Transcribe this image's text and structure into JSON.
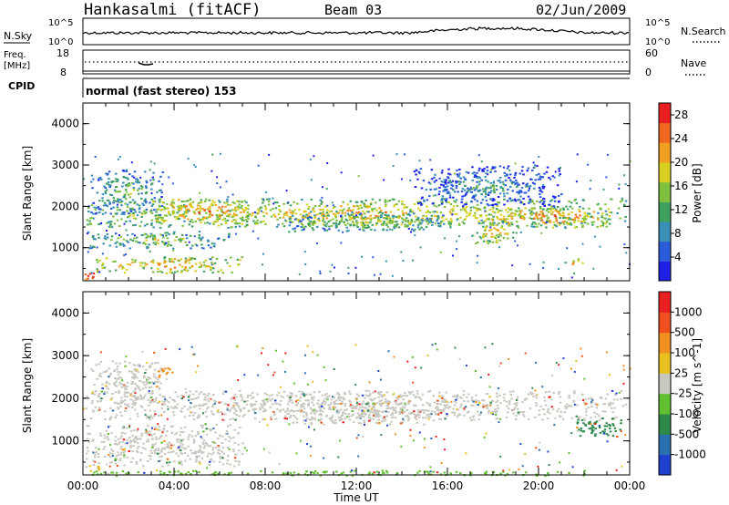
{
  "header": {
    "station": "Hankasalmi (fitACF)",
    "beam": "Beam 03",
    "date": "02/Jun/2009"
  },
  "noise_panel": {
    "left_label": "N.Sky",
    "right_label": "N.Search",
    "left_ticks": [
      "10^5",
      "10^0"
    ],
    "right_ticks": [
      "10^5",
      "10^0"
    ]
  },
  "freq_panel": {
    "left_label_line1": "Freq.",
    "left_label_line2": "[MHz]",
    "right_label": "Nave",
    "left_ticks": [
      "18",
      "8"
    ],
    "right_ticks": [
      "60",
      "0"
    ]
  },
  "cpid": {
    "label": "CPID",
    "mode": "normal (fast stereo) 153"
  },
  "chart_data": [
    {
      "type": "heatmap",
      "name": "power",
      "ylabel": "Slant Range [km]",
      "x_ticks": [
        "00:00",
        "04:00",
        "08:00",
        "12:00",
        "16:00",
        "20:00",
        "00:00"
      ],
      "y_ticks": [
        "1000",
        "2000",
        "3000",
        "4000"
      ],
      "ylim": [
        200,
        4500
      ],
      "xlim_hours": [
        0,
        24
      ],
      "colorbar": {
        "label": "Power [dB]",
        "ticks": [
          "4",
          "8",
          "12",
          "16",
          "20",
          "24",
          "28"
        ],
        "range": [
          0,
          30
        ],
        "colors": [
          "#1f1fe6",
          "#2a5bd8",
          "#3a8fb8",
          "#3fa060",
          "#80c040",
          "#d8d020",
          "#f0a020",
          "#f06820",
          "#e82020"
        ]
      },
      "bands": [
        {
          "t0": 0.1,
          "t1": 23.8,
          "r0": 1500,
          "r1": 2200,
          "level": 16
        },
        {
          "t0": 0.3,
          "t1": 3.5,
          "r0": 1800,
          "r1": 2900,
          "level": 10
        },
        {
          "t0": 3.0,
          "t1": 7.5,
          "r0": 1600,
          "r1": 2200,
          "level": 20
        },
        {
          "t0": 17.5,
          "t1": 23.2,
          "r0": 1500,
          "r1": 2000,
          "level": 20
        },
        {
          "t0": 0.1,
          "t1": 6.5,
          "r0": 1000,
          "r1": 1400,
          "level": 12
        },
        {
          "t0": 0.5,
          "t1": 7.0,
          "r0": 400,
          "r1": 800,
          "level": 18
        },
        {
          "t0": 9.0,
          "t1": 16.0,
          "r0": 1400,
          "r1": 1900,
          "level": 12
        },
        {
          "t0": 14.5,
          "t1": 21.0,
          "r0": 2000,
          "r1": 3000,
          "level": 6
        },
        {
          "t0": 0.0,
          "t1": 0.6,
          "r0": 250,
          "r1": 500,
          "level": 26
        },
        {
          "t0": 17.0,
          "t1": 19.0,
          "r0": 1100,
          "r1": 1700,
          "level": 16
        },
        {
          "t0": 21.0,
          "t1": 22.0,
          "r0": 550,
          "r1": 750,
          "level": 18
        }
      ]
    },
    {
      "type": "heatmap",
      "name": "velocity",
      "ylabel": "Slant Range [km]",
      "xlabel": "Time UT",
      "x_ticks": [
        "00:00",
        "04:00",
        "08:00",
        "12:00",
        "16:00",
        "20:00",
        "00:00"
      ],
      "y_ticks": [
        "1000",
        "2000",
        "3000",
        "4000"
      ],
      "ylim": [
        200,
        4500
      ],
      "xlim_hours": [
        0,
        24
      ],
      "colorbar": {
        "label": "Velocity [m s^-1]",
        "ticks": [
          "1000",
          "500",
          "100",
          "25",
          "-25",
          "-100",
          "-500",
          "-1000"
        ],
        "colors": [
          "#2040d0",
          "#2a6fb0",
          "#2e8a4a",
          "#60c030",
          "#c8c8c0",
          "#e8c020",
          "#f09020",
          "#f05020",
          "#e82020"
        ]
      },
      "bands": [
        {
          "t0": 0.1,
          "t1": 23.8,
          "r0": 1500,
          "r1": 2200,
          "color": "#c8c8c0"
        },
        {
          "t0": 0.3,
          "t1": 3.5,
          "r0": 1800,
          "r1": 2900,
          "color": "#c8c8c0"
        },
        {
          "t0": 0.1,
          "t1": 7.0,
          "r0": 400,
          "r1": 1400,
          "color": "#c8c8c0"
        },
        {
          "t0": 9.0,
          "t1": 16.0,
          "r0": 1400,
          "r1": 1900,
          "color": "#c8c8c0"
        },
        {
          "t0": 21.5,
          "t1": 23.6,
          "r0": 1100,
          "r1": 1600,
          "color": "#2e8a4a"
        },
        {
          "t0": 3.2,
          "t1": 4.0,
          "r0": 2500,
          "r1": 2800,
          "color": "#f09020"
        },
        {
          "t0": 0.2,
          "t1": 0.8,
          "r0": 250,
          "r1": 450,
          "color": "#e8c020"
        },
        {
          "t0": 0.3,
          "t1": 22.0,
          "r0": 200,
          "r1": 320,
          "color": "#60c030"
        }
      ]
    }
  ]
}
